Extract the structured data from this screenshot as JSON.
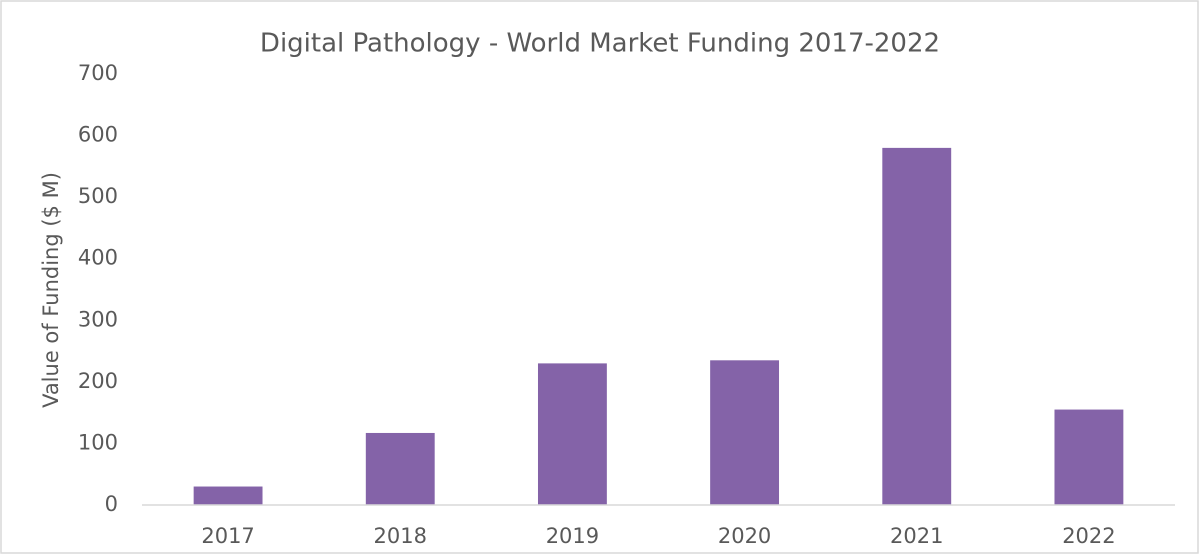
{
  "chart_data": {
    "type": "bar",
    "title": "Digital Pathology - World Market Funding 2017-2022",
    "y_label": "Value of Funding ($ M)",
    "categories": [
      "2017",
      "2018",
      "2019",
      "2020",
      "2021",
      "2022"
    ],
    "values": [
      30,
      117,
      230,
      235,
      580,
      155
    ],
    "color": "#8463a8",
    "ylim": [
      0,
      700
    ],
    "yticks": [
      0,
      100,
      200,
      300,
      400,
      500,
      600,
      700
    ],
    "grid": false
  }
}
